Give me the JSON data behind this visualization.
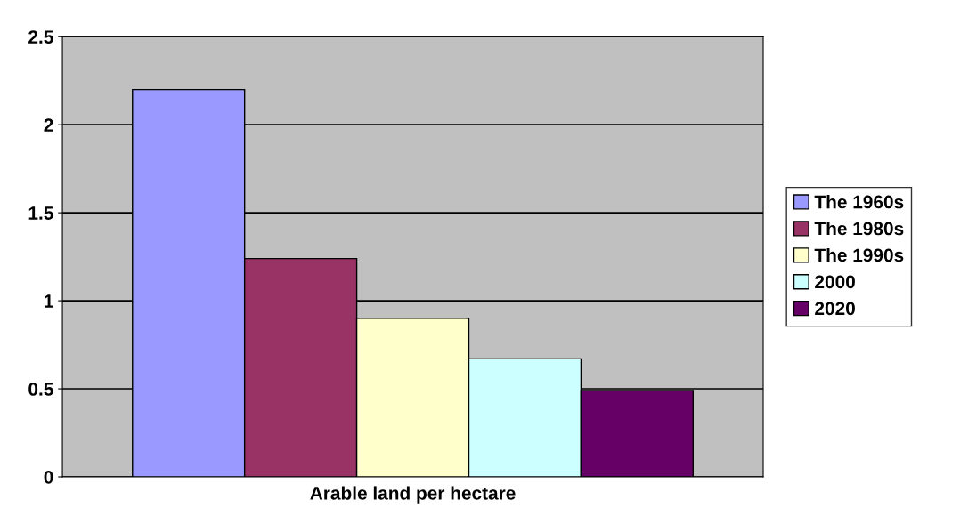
{
  "chart_data": {
    "type": "bar",
    "xlabel": "Arable land per hectare",
    "categories": [
      null
    ],
    "series": [
      {
        "name": "The 1960s",
        "color": "#9999ff",
        "values": [
          2.2
        ]
      },
      {
        "name": "The 1980s",
        "color": "#993366",
        "values": [
          1.24
        ]
      },
      {
        "name": "The 1990s",
        "color": "#ffffcc",
        "values": [
          0.9
        ]
      },
      {
        "name": "2000",
        "color": "#ccffff",
        "values": [
          0.67
        ]
      },
      {
        "name": "2020",
        "color": "#660066",
        "values": [
          0.49
        ]
      }
    ],
    "ylim": [
      0,
      2.5
    ],
    "yticks": [
      0,
      0.5,
      1,
      1.5,
      2,
      2.5
    ],
    "grid": "y",
    "legend": "right"
  }
}
